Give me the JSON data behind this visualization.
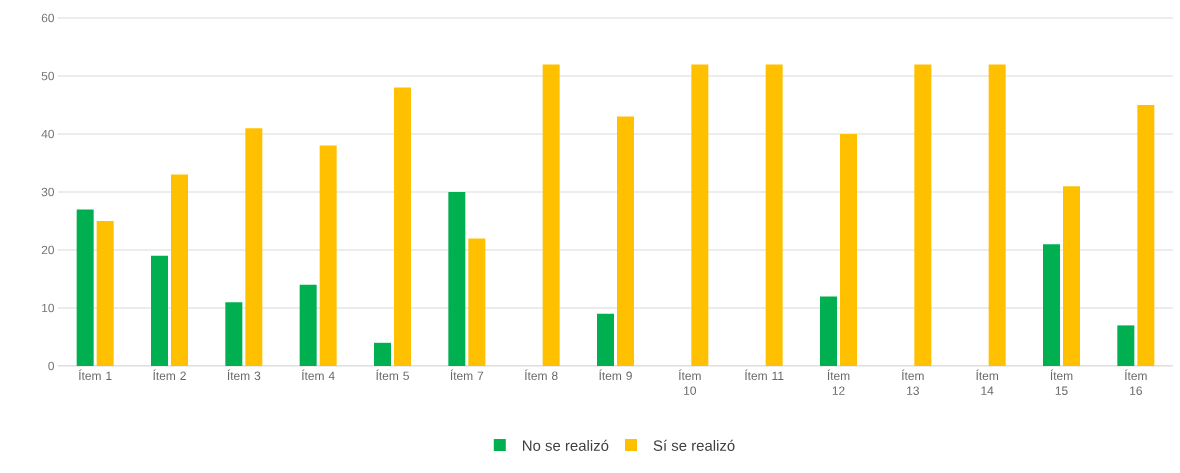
{
  "chart_data": {
    "type": "bar",
    "categories": [
      "Ítem 1",
      "Ítem 2",
      "Ítem 3",
      "Ítem 4",
      "Ítem 5",
      "Ítem 7",
      "Ítem 8",
      "Ítem 9",
      "Ítem 10",
      "Ítem 11",
      "Ítem 12",
      "Ítem 13",
      "Ítem 14",
      "Ítem 15",
      "Ítem 16"
    ],
    "series": [
      {
        "name": "No se realizó",
        "color": "#00b050",
        "values": [
          27,
          19,
          11,
          14,
          4,
          30,
          0,
          9,
          0,
          0,
          12,
          0,
          0,
          21,
          7
        ]
      },
      {
        "name": "Sí se realizó",
        "color": "#ffc000",
        "values": [
          25,
          33,
          41,
          38,
          48,
          22,
          52,
          43,
          52,
          52,
          40,
          52,
          52,
          31,
          45
        ]
      }
    ],
    "ylim": [
      0,
      60
    ],
    "yticks": [
      0,
      10,
      20,
      30,
      40,
      50,
      60
    ],
    "grid": "y",
    "legend": "bottom"
  }
}
